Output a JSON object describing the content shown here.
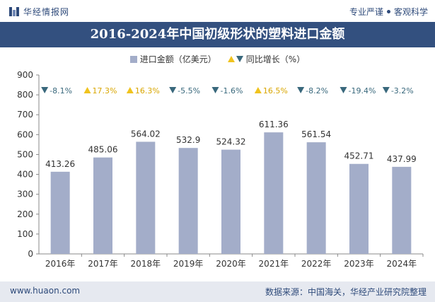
{
  "header": {
    "brand": "华经情报网",
    "tagline_left": "专业严谨",
    "tagline_right": "客观科学"
  },
  "title": "2016-2024年中国初级形状的塑料进口金额",
  "legend": {
    "bar_label": "进口金额（亿美元）",
    "growth_label": "同比增长（%）"
  },
  "footer": {
    "site": "www.huaon.com",
    "source": "数据来源：中国海关，华经产业研究院整理"
  },
  "colors": {
    "bar": "#a3adc9",
    "up": "#f0c31e",
    "down": "#39687c",
    "title_bg": "#33507f"
  },
  "chart_data": {
    "type": "bar",
    "categories": [
      "2016年",
      "2017年",
      "2018年",
      "2019年",
      "2020年",
      "2021年",
      "2022年",
      "2023年",
      "2024年"
    ],
    "series": [
      {
        "name": "进口金额（亿美元）",
        "values": [
          413.26,
          485.06,
          564.02,
          532.9,
          524.32,
          611.36,
          561.54,
          452.71,
          437.99
        ]
      },
      {
        "name": "同比增长（%）",
        "values": [
          -8.1,
          17.3,
          16.3,
          -5.5,
          -1.6,
          16.5,
          -8.2,
          -19.4,
          -3.2
        ]
      }
    ],
    "value_labels": [
      "413.26",
      "485.06",
      "564.02",
      "532.9",
      "524.32",
      "611.36",
      "561.54",
      "452.71",
      "437.99"
    ],
    "growth_labels": [
      "-8.1%",
      "17.3%",
      "16.3%",
      "-5.5%",
      "-1.6%",
      "16.5%",
      "-8.2%",
      "-19.4%",
      "-3.2%"
    ],
    "yticks": [
      "0",
      "100",
      "200",
      "300",
      "400",
      "500",
      "600",
      "700",
      "800",
      "900"
    ],
    "ylim": [
      0,
      900
    ],
    "grid": false,
    "legend_position": "top-center"
  }
}
